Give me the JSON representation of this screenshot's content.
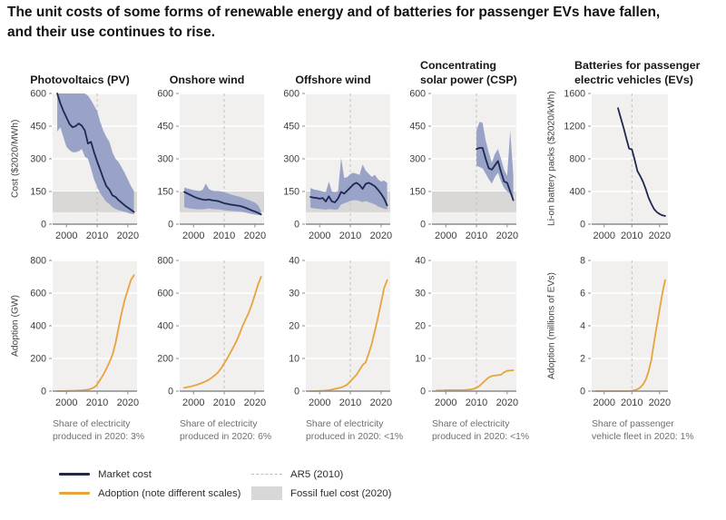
{
  "figure": {
    "title": "The unit costs of some forms of renewable energy and of batteries for passenger EVs have fallen,\nand their use continues to rise."
  },
  "colors": {
    "market_cost_line": "#1f2850",
    "adoption_line": "#e8a33d",
    "uncertainty_band": "#98a3c7",
    "fossil_band": "#d9d8d6",
    "plot_bg": "#f1f0ee",
    "gridline": "#ffffff",
    "ar5_dashed": "#c6c6c6",
    "axis": "#8c8c8c",
    "tick_text": "#3d3d3d"
  },
  "legend": {
    "items": [
      {
        "type": "line",
        "color": "#1f2850",
        "label": "Market cost"
      },
      {
        "type": "line",
        "color": "#e8a33d",
        "label": "Adoption (note different scales)"
      },
      {
        "type": "dashed",
        "color": "#bdbdbd",
        "label": "AR5 (2010)"
      },
      {
        "type": "box",
        "color": "#d9d8d6",
        "label": "Fossil fuel cost (2020)"
      }
    ]
  },
  "chart_data": {
    "type": "line",
    "x_domain": [
      1995.5,
      2023
    ],
    "x_ticks": [
      2000,
      2010,
      2020
    ],
    "ar5_year": 2010,
    "cost_row": [
      {
        "name": "pv-cost",
        "title": "Photovoltaics (PV)",
        "ylabel": "Cost ($2020/MWh)",
        "ylim": [
          0,
          600
        ],
        "yticks": [
          0,
          150,
          300,
          450,
          600
        ],
        "fossil_band": [
          55,
          150
        ],
        "x_start": 1997,
        "line": [
          600,
          555,
          520,
          490,
          460,
          445,
          450,
          462,
          452,
          430,
          370,
          378,
          330,
          288,
          250,
          210,
          175,
          158,
          132,
          125,
          110,
          98,
          86,
          76,
          66,
          56
        ],
        "band_upper": [
          640,
          640,
          640,
          640,
          640,
          640,
          640,
          640,
          630,
          610,
          590,
          570,
          545,
          520,
          470,
          430,
          400,
          378,
          330,
          300,
          285,
          260,
          235,
          205,
          175,
          152
        ],
        "band_lower": [
          425,
          445,
          400,
          355,
          340,
          330,
          330,
          335,
          345,
          310,
          300,
          255,
          205,
          172,
          142,
          122,
          102,
          92,
          78,
          70,
          64,
          60,
          56,
          52,
          48,
          45
        ]
      },
      {
        "name": "onshore-wind-cost",
        "title": "Onshore wind",
        "ylim": [
          0,
          600
        ],
        "yticks": [
          0,
          150,
          300,
          450,
          600
        ],
        "fossil_band": [
          55,
          150
        ],
        "x_start": 1997,
        "line": [
          148,
          141,
          134,
          127,
          121,
          116,
          113,
          111,
          113,
          110,
          108,
          106,
          101,
          96,
          93,
          90,
          88,
          86,
          84,
          80,
          75,
          69,
          63,
          58,
          52,
          45
        ],
        "band_upper": [
          168,
          164,
          160,
          157,
          154,
          152,
          158,
          186,
          162,
          154,
          152,
          152,
          150,
          147,
          142,
          137,
          133,
          129,
          126,
          121,
          116,
          111,
          105,
          99,
          88,
          62
        ],
        "band_lower": [
          78,
          74,
          72,
          70,
          69,
          68,
          68,
          70,
          72,
          70,
          69,
          68,
          66,
          64,
          62,
          61,
          60,
          59,
          58,
          56,
          53,
          50,
          47,
          44,
          42,
          40
        ]
      },
      {
        "name": "offshore-wind-cost",
        "title": "Offshore wind",
        "ylim": [
          0,
          600
        ],
        "yticks": [
          0,
          150,
          300,
          450,
          600
        ],
        "fossil_band": [
          55,
          150
        ],
        "x_start": 1997,
        "line": [
          125,
          122,
          120,
          117,
          120,
          104,
          128,
          104,
          100,
          118,
          148,
          140,
          154,
          168,
          183,
          190,
          180,
          162,
          185,
          190,
          183,
          174,
          158,
          140,
          118,
          86
        ],
        "band_upper": [
          166,
          160,
          157,
          154,
          150,
          146,
          196,
          150,
          146,
          152,
          305,
          212,
          216,
          230,
          236,
          231,
          226,
          274,
          246,
          231,
          217,
          226,
          206,
          196,
          200,
          190
        ],
        "band_lower": [
          76,
          73,
          71,
          70,
          68,
          66,
          70,
          68,
          66,
          68,
          90,
          96,
          101,
          106,
          110,
          110,
          106,
          101,
          106,
          101,
          96,
          91,
          81,
          76,
          71,
          68
        ]
      },
      {
        "name": "csp-cost",
        "title": "Concentrating\nsolar power (CSP)",
        "ylim": [
          0,
          600
        ],
        "yticks": [
          0,
          150,
          300,
          450,
          600
        ],
        "fossil_band": [
          55,
          150
        ],
        "x_start": 2010,
        "line": [
          345,
          350,
          350,
          300,
          257,
          250,
          270,
          290,
          240,
          196,
          190,
          150,
          110
        ],
        "band_upper": [
          430,
          470,
          465,
          385,
          330,
          282,
          322,
          345,
          300,
          250,
          222,
          430,
          225
        ],
        "band_lower": [
          268,
          262,
          256,
          232,
          207,
          186,
          216,
          236,
          196,
          166,
          150,
          140,
          104
        ]
      },
      {
        "name": "ev-battery-cost",
        "title": "Batteries for passenger\nelectric vehicles (EVs)",
        "ylabel": "Li-on battery packs ($2020/kWh)",
        "ylim": [
          0,
          1600
        ],
        "yticks": [
          0,
          400,
          800,
          1200,
          1600
        ],
        "fossil_band": null,
        "x_start": 2005,
        "line": [
          1420,
          1300,
          1180,
          1050,
          925,
          915,
          790,
          650,
          590,
          520,
          430,
          325,
          250,
          185,
          148,
          124,
          108,
          100
        ]
      }
    ],
    "adoption_row": [
      {
        "name": "pv-adoption",
        "ylabel": "Adoption (GW)",
        "ylim": [
          0,
          800
        ],
        "yticks": [
          0,
          200,
          400,
          600,
          800
        ],
        "x_start": 1997,
        "line": [
          0.5,
          0.7,
          0.9,
          1.3,
          1.7,
          2.2,
          2.8,
          3.7,
          5,
          7,
          9,
          15,
          23,
          40,
          70,
          100,
          137,
          177,
          222,
          295,
          390,
          480,
          560,
          620,
          680,
          710
        ],
        "caption": "Share of electricity\nproduced in 2020: 3%"
      },
      {
        "name": "onshore-wind-adoption",
        "ylim": [
          0,
          800
        ],
        "yticks": [
          0,
          200,
          400,
          600,
          800
        ],
        "x_start": 1997,
        "line": [
          20,
          24,
          28,
          33,
          38,
          45,
          52,
          60,
          70,
          83,
          98,
          115,
          140,
          170,
          200,
          235,
          270,
          305,
          350,
          400,
          440,
          480,
          530,
          590,
          650,
          700
        ],
        "caption": "Share of electricity\nproduced in 2020: 6%"
      },
      {
        "name": "offshore-wind-adoption",
        "ylim": [
          0,
          40
        ],
        "yticks": [
          0,
          10,
          20,
          30,
          40
        ],
        "x_start": 1997,
        "line": [
          0,
          0,
          0,
          0.1,
          0.1,
          0.2,
          0.3,
          0.5,
          0.7,
          0.9,
          1.1,
          1.5,
          2,
          3,
          4,
          5,
          6.5,
          8,
          8.8,
          11.5,
          14.5,
          18.5,
          22.5,
          27,
          31.5,
          34
        ],
        "caption": "Share of electricity\nproduced in 2020: <1%"
      },
      {
        "name": "csp-adoption",
        "ylim": [
          0,
          40
        ],
        "yticks": [
          0,
          10,
          20,
          30,
          40
        ],
        "x_start": 1997,
        "line": [
          0.2,
          0.2,
          0.2,
          0.3,
          0.3,
          0.3,
          0.3,
          0.3,
          0.3,
          0.3,
          0.4,
          0.5,
          0.7,
          1,
          1.6,
          2.5,
          3.4,
          4.2,
          4.6,
          4.8,
          4.9,
          5,
          5.8,
          6.2,
          6.3,
          6.4
        ],
        "caption": "Share of electricity\nproduced in 2020: <1%"
      },
      {
        "name": "ev-adoption",
        "ylabel": "Adoption (millions of EVs)",
        "ylim": [
          0,
          8
        ],
        "yticks": [
          0,
          2,
          4,
          6,
          8
        ],
        "x_start": 1997,
        "line": [
          0,
          0,
          0,
          0,
          0,
          0,
          0,
          0,
          0,
          0,
          0,
          0,
          0,
          0.02,
          0.06,
          0.12,
          0.22,
          0.4,
          0.7,
          1.2,
          1.9,
          3.0,
          4.0,
          5.0,
          6.0,
          6.8
        ],
        "caption": "Share of passenger\nvehicle fleet in 2020: 1%"
      }
    ]
  }
}
